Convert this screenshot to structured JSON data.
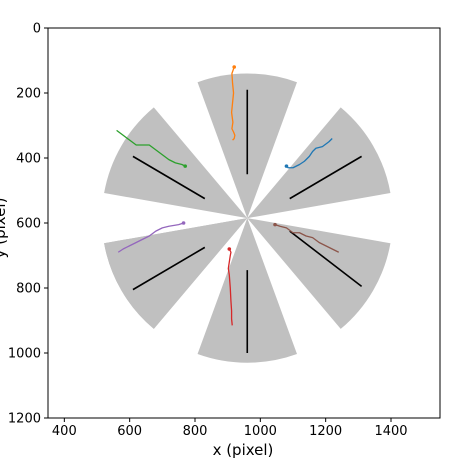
{
  "chart_data": {
    "type": "scatter",
    "title": "",
    "xlabel": "x (pixel)",
    "ylabel": "y (pixel)",
    "xlim": [
      350,
      1550
    ],
    "ylim": [
      1200,
      0
    ],
    "xticks": [
      400,
      600,
      800,
      1000,
      1200,
      1400
    ],
    "yticks": [
      0,
      200,
      400,
      600,
      800,
      1000,
      1200
    ],
    "grid": false,
    "center": [
      960,
      585
    ],
    "sectors": {
      "color": "#c0c0c0",
      "outer_radius": 445,
      "half_angle_deg": 20,
      "center_angles_deg": [
        90,
        30,
        -30,
        -90,
        -150,
        150,
        210
      ]
    },
    "stripes": [
      {
        "x1": 960,
        "y1": 190,
        "x2": 960,
        "y2": 450
      },
      {
        "x1": 1090,
        "y1": 525,
        "x2": 1310,
        "y2": 395
      },
      {
        "x1": 1090,
        "y1": 625,
        "x2": 1310,
        "y2": 795
      },
      {
        "x1": 960,
        "y1": 745,
        "x2": 960,
        "y2": 1000
      },
      {
        "x1": 830,
        "y1": 675,
        "x2": 610,
        "y2": 805
      },
      {
        "x1": 830,
        "y1": 525,
        "x2": 610,
        "y2": 395
      }
    ],
    "series": [
      {
        "color": "#ff7f0e",
        "x": [
          920,
          913,
          915,
          918,
          915,
          912,
          916,
          913,
          918,
          922,
          920,
          915
        ],
        "y": [
          120,
          140,
          170,
          200,
          230,
          260,
          290,
          310,
          320,
          330,
          340,
          345
        ]
      },
      {
        "color": "#1f77b4",
        "x": [
          1080,
          1085,
          1100,
          1120,
          1135,
          1150,
          1160,
          1170,
          1190,
          1210,
          1220
        ],
        "y": [
          425,
          430,
          430,
          420,
          410,
          395,
          380,
          370,
          365,
          350,
          340
        ]
      },
      {
        "color": "#2ca02c",
        "x": [
          770,
          760,
          740,
          720,
          700,
          680,
          660,
          640,
          620,
          600,
          580,
          560
        ],
        "y": [
          425,
          420,
          415,
          405,
          390,
          375,
          360,
          360,
          360,
          345,
          330,
          315
        ]
      },
      {
        "color": "#9467bd",
        "x": [
          765,
          750,
          720,
          700,
          680,
          660,
          640,
          620,
          600,
          580,
          565
        ],
        "y": [
          600,
          605,
          610,
          615,
          625,
          640,
          650,
          660,
          670,
          680,
          690
        ]
      },
      {
        "color": "#8c564b",
        "x": [
          1045,
          1060,
          1080,
          1100,
          1120,
          1140,
          1160,
          1180,
          1200,
          1220,
          1240
        ],
        "y": [
          605,
          610,
          615,
          630,
          630,
          640,
          645,
          660,
          670,
          680,
          690
        ]
      },
      {
        "color": "#d62728",
        "x": [
          905,
          910,
          908,
          905,
          902,
          905,
          908,
          910,
          912,
          912,
          914
        ],
        "y": [
          680,
          690,
          700,
          720,
          740,
          760,
          800,
          840,
          870,
          895,
          915
        ]
      }
    ]
  }
}
